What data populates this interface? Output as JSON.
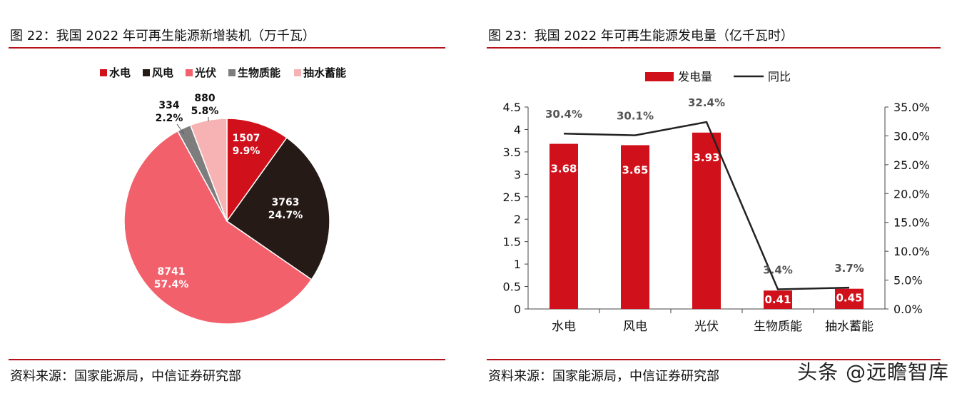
{
  "left": {
    "title": "图 22：我国 2022 年可再生能源新增装机（万千瓦）",
    "source": "资料来源：国家能源局，中信证券研究部"
  },
  "right": {
    "title": "图 23：我国 2022 年可再生能源发电量（亿千瓦时）",
    "source": "资料来源：国家能源局，中信证券研究部"
  },
  "watermark": "头条 @远瞻智库",
  "colors": {
    "rule": "#b3121b",
    "hydro": "#d0101a",
    "wind": "#261a17",
    "solar": "#f2606c",
    "bio": "#7d7d7d",
    "storage": "#f7b3b3",
    "bar": "#d0101a",
    "line": "#222222"
  },
  "chart_data": [
    {
      "type": "pie",
      "legend": [
        "水电",
        "风电",
        "光伏",
        "生物质能",
        "抽水蓄能"
      ],
      "legend_position": "top",
      "slices": [
        {
          "name": "水电",
          "value": 1507,
          "label": "1507",
          "pct": "9.9%"
        },
        {
          "name": "风电",
          "value": 3763,
          "label": "3763",
          "pct": "24.7%"
        },
        {
          "name": "光伏",
          "value": 8741,
          "label": "8741",
          "pct": "57.4%"
        },
        {
          "name": "生物质能",
          "value": 334,
          "label": "334",
          "pct": "2.2%"
        },
        {
          "name": "抽水蓄能",
          "value": 880,
          "label": "880",
          "pct": "5.8%"
        }
      ]
    },
    {
      "type": "bar",
      "categories": [
        "水电",
        "风电",
        "光伏",
        "生物质能",
        "抽水蓄能"
      ],
      "series": [
        {
          "name": "发电量",
          "type": "bar",
          "axis": "left",
          "values": [
            3.68,
            3.65,
            3.93,
            0.41,
            0.45
          ],
          "labels": [
            "3.68",
            "3.65",
            "3.93",
            "0.41",
            "0.45"
          ]
        },
        {
          "name": "同比",
          "type": "line",
          "axis": "right",
          "values": [
            30.4,
            30.1,
            32.4,
            3.4,
            3.7
          ],
          "labels": [
            "30.4%",
            "30.1%",
            "32.4%",
            "3.4%",
            "3.7%"
          ]
        }
      ],
      "ylim": [
        0,
        4.5
      ],
      "yticks": [
        "0",
        "0.5",
        "1",
        "1.5",
        "2",
        "2.5",
        "3",
        "3.5",
        "4",
        "4.5"
      ],
      "y2lim": [
        0,
        35
      ],
      "y2ticks": [
        "0.0%",
        "5.0%",
        "10.0%",
        "15.0%",
        "20.0%",
        "25.0%",
        "30.0%",
        "35.0%"
      ],
      "legend_position": "top",
      "grid": false
    }
  ]
}
